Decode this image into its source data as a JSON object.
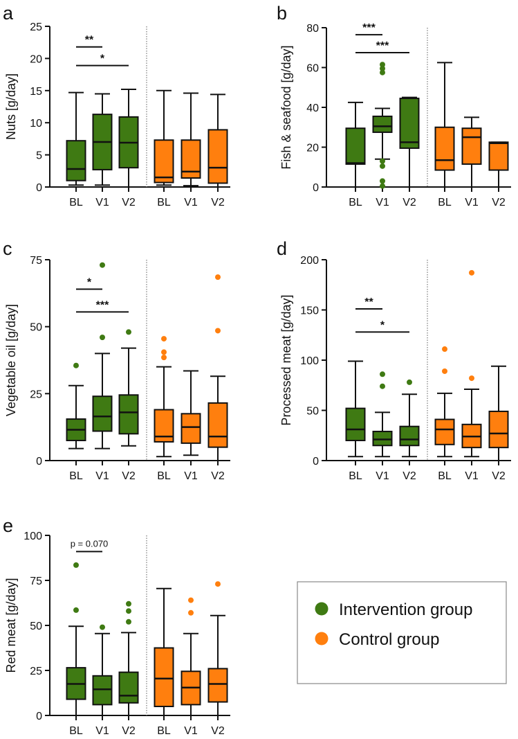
{
  "colors": {
    "intervention": "#3f7a13",
    "control": "#ff7f0e",
    "axis": "#111111",
    "divider": "#777777",
    "legend_border": "#888888"
  },
  "legend": {
    "position": "bottom-right",
    "items": [
      {
        "label": "Intervention group",
        "color": "#3f7a13"
      },
      {
        "label": "Control group",
        "color": "#ff7f0e"
      }
    ]
  },
  "chart_data": [
    {
      "panel": "a",
      "type": "boxplot",
      "ylabel": "Nuts [g/day]",
      "ylim": [
        0,
        25
      ],
      "yticks": [
        0,
        5,
        10,
        15,
        20,
        25
      ],
      "categories": [
        "BL",
        "V1",
        "V2",
        "BL",
        "V1",
        "V2"
      ],
      "boxes": [
        {
          "group": "intervention",
          "min": 0.3,
          "q1": 1.0,
          "median": 2.8,
          "q3": 7.2,
          "max": 14.7,
          "outliers": []
        },
        {
          "group": "intervention",
          "min": 0.3,
          "q1": 2.7,
          "median": 7.0,
          "q3": 11.3,
          "max": 14.5,
          "outliers": []
        },
        {
          "group": "intervention",
          "min": 0.0,
          "q1": 3.0,
          "median": 6.9,
          "q3": 10.9,
          "max": 15.2,
          "outliers": []
        },
        {
          "group": "control",
          "min": 0.3,
          "q1": 0.7,
          "median": 1.5,
          "q3": 7.3,
          "max": 15.0,
          "outliers": []
        },
        {
          "group": "control",
          "min": 0.2,
          "q1": 1.4,
          "median": 2.4,
          "q3": 7.3,
          "max": 14.6,
          "outliers": []
        },
        {
          "group": "control",
          "min": 0.0,
          "q1": 0.6,
          "median": 3.0,
          "q3": 8.9,
          "max": 14.4,
          "outliers": []
        }
      ],
      "significance": [
        {
          "from": 0,
          "to": 1,
          "label": "**",
          "y": 21.8
        },
        {
          "from": 0,
          "to": 2,
          "label": "*",
          "y": 18.9
        }
      ]
    },
    {
      "panel": "b",
      "type": "boxplot",
      "ylabel": "Fish & seafood [g/day]",
      "ylim": [
        0,
        80
      ],
      "yticks": [
        0,
        20,
        40,
        60,
        80
      ],
      "categories": [
        "BL",
        "V1",
        "V2",
        "BL",
        "V1",
        "V2"
      ],
      "boxes": [
        {
          "group": "intervention",
          "min": 0,
          "q1": 11.5,
          "median": 12,
          "q3": 29.5,
          "max": 42.5,
          "outliers": []
        },
        {
          "group": "intervention",
          "min": 14,
          "q1": 27.5,
          "median": 30.5,
          "q3": 35.5,
          "max": 39.5,
          "outliers": [
            0.5,
            3,
            10.5,
            13,
            57.5,
            59.5,
            61.5
          ]
        },
        {
          "group": "intervention",
          "min": 0,
          "q1": 19.5,
          "median": 22.5,
          "q3": 44.5,
          "max": 45,
          "outliers": []
        },
        {
          "group": "control",
          "min": 0,
          "q1": 8.5,
          "median": 13.5,
          "q3": 30,
          "max": 62.5,
          "outliers": []
        },
        {
          "group": "control",
          "min": 0,
          "q1": 11.5,
          "median": 25,
          "q3": 29.5,
          "max": 35,
          "outliers": []
        },
        {
          "group": "control",
          "min": 0,
          "q1": 8.5,
          "median": 22,
          "q3": 22.5,
          "max": 22.5,
          "outliers": []
        }
      ],
      "significance": [
        {
          "from": 0,
          "to": 1,
          "label": "***",
          "y": 76.5
        },
        {
          "from": 0,
          "to": 2,
          "label": "***",
          "y": 67.5
        }
      ]
    },
    {
      "panel": "c",
      "type": "boxplot",
      "ylabel": "Vegetable oil [g/day]",
      "ylim": [
        0,
        75
      ],
      "yticks": [
        0,
        25,
        50,
        75
      ],
      "categories": [
        "BL",
        "V1",
        "V2",
        "BL",
        "V1",
        "V2"
      ],
      "boxes": [
        {
          "group": "intervention",
          "min": 4.5,
          "q1": 7.5,
          "median": 11.5,
          "q3": 15.5,
          "max": 28,
          "outliers": [
            35.5
          ]
        },
        {
          "group": "intervention",
          "min": 4.5,
          "q1": 11,
          "median": 16.5,
          "q3": 24,
          "max": 40,
          "outliers": [
            46,
            73
          ]
        },
        {
          "group": "intervention",
          "min": 5.5,
          "q1": 10,
          "median": 18,
          "q3": 24.5,
          "max": 42,
          "outliers": [
            48
          ]
        },
        {
          "group": "control",
          "min": 1.5,
          "q1": 7,
          "median": 9,
          "q3": 19,
          "max": 35,
          "outliers": [
            38.5,
            40.5,
            45.5
          ]
        },
        {
          "group": "control",
          "min": 2,
          "q1": 6.5,
          "median": 12.5,
          "q3": 17.5,
          "max": 33.5,
          "outliers": []
        },
        {
          "group": "control",
          "min": 0,
          "q1": 5,
          "median": 9,
          "q3": 21.5,
          "max": 31.5,
          "outliers": [
            48.5,
            68.5
          ]
        }
      ],
      "significance": [
        {
          "from": 0,
          "to": 1,
          "label": "*",
          "y": 64
        },
        {
          "from": 0,
          "to": 2,
          "label": "***",
          "y": 55.5
        }
      ]
    },
    {
      "panel": "d",
      "type": "boxplot",
      "ylabel": "Processed meat [g/day]",
      "ylim": [
        0,
        200
      ],
      "yticks": [
        0,
        50,
        100,
        150,
        200
      ],
      "categories": [
        "BL",
        "V1",
        "V2",
        "BL",
        "V1",
        "V2"
      ],
      "boxes": [
        {
          "group": "intervention",
          "min": 4,
          "q1": 20,
          "median": 31,
          "q3": 52,
          "max": 99,
          "outliers": []
        },
        {
          "group": "intervention",
          "min": 4,
          "q1": 15,
          "median": 21,
          "q3": 29,
          "max": 48,
          "outliers": [
            74,
            86
          ]
        },
        {
          "group": "intervention",
          "min": 4,
          "q1": 15,
          "median": 21,
          "q3": 34,
          "max": 66,
          "outliers": [
            78
          ]
        },
        {
          "group": "control",
          "min": 4,
          "q1": 16,
          "median": 31,
          "q3": 41,
          "max": 67,
          "outliers": [
            89,
            111
          ]
        },
        {
          "group": "control",
          "min": 4,
          "q1": 13,
          "median": 24,
          "q3": 36,
          "max": 71,
          "outliers": [
            82,
            187
          ]
        },
        {
          "group": "control",
          "min": 0,
          "q1": 13,
          "median": 27,
          "q3": 49,
          "max": 94,
          "outliers": []
        }
      ],
      "significance": [
        {
          "from": 0,
          "to": 1,
          "label": "**",
          "y": 151
        },
        {
          "from": 0,
          "to": 2,
          "label": "*",
          "y": 128
        }
      ]
    },
    {
      "panel": "e",
      "type": "boxplot",
      "ylabel": "Red meat [g/day]",
      "ylim": [
        0,
        100
      ],
      "yticks": [
        0,
        25,
        50,
        75,
        100
      ],
      "categories": [
        "BL",
        "V1",
        "V2",
        "BL",
        "V1",
        "V2"
      ],
      "boxes": [
        {
          "group": "intervention",
          "min": 0,
          "q1": 9,
          "median": 17.5,
          "q3": 26.5,
          "max": 49.5,
          "outliers": [
            58.5,
            83.5
          ]
        },
        {
          "group": "intervention",
          "min": 0,
          "q1": 6,
          "median": 14.5,
          "q3": 22,
          "max": 45.5,
          "outliers": [
            49
          ]
        },
        {
          "group": "intervention",
          "min": 0,
          "q1": 7,
          "median": 11,
          "q3": 24,
          "max": 46,
          "outliers": [
            52,
            58,
            62
          ]
        },
        {
          "group": "control",
          "min": 0,
          "q1": 5,
          "median": 20.5,
          "q3": 37.5,
          "max": 70.5,
          "outliers": []
        },
        {
          "group": "control",
          "min": 0,
          "q1": 6,
          "median": 15.5,
          "q3": 24.5,
          "max": 45.5,
          "outliers": [
            57,
            64
          ]
        },
        {
          "group": "control",
          "min": 0,
          "q1": 7.5,
          "median": 17.5,
          "q3": 26,
          "max": 55.5,
          "outliers": [
            73
          ]
        }
      ],
      "significance": [
        {
          "from": 0,
          "to": 1,
          "label": "p = 0.070",
          "y": 91
        }
      ]
    }
  ]
}
